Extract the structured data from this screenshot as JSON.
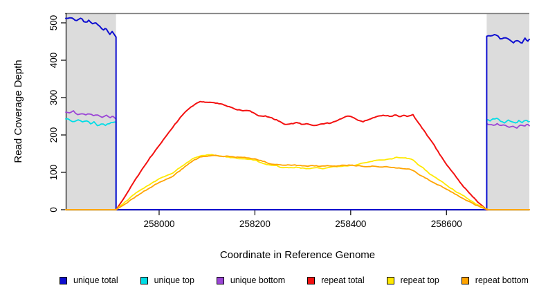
{
  "chart_data": {
    "type": "line",
    "title": "",
    "xlabel": "Coordinate in Reference Genome",
    "ylabel": "Read Coverage Depth",
    "xlim": [
      257805,
      258773
    ],
    "ylim": [
      0,
      526
    ],
    "xticks": [
      258000,
      258200,
      258400,
      258600
    ],
    "yticks": [
      0,
      100,
      200,
      300,
      400,
      500
    ],
    "grid": false,
    "legend_position": "bottom",
    "colors": {
      "shade": "#DCDCDC",
      "box": "#7F7F7F",
      "axis": "#000000",
      "blue": "#0F0FD0",
      "cyan": "#00DDE6",
      "purple": "#9B45D6",
      "red": "#F31111",
      "yellow": "#FFE900",
      "orange": "#FFA400"
    },
    "shaded_regions": [
      {
        "x0": 257805,
        "x1": 257910
      },
      {
        "x0": 258684,
        "x1": 258773
      }
    ],
    "series": [
      {
        "name": "unique total",
        "color": "#0F0FD0",
        "z": 2,
        "jitter": 3.2,
        "width": 2,
        "points": [
          [
            257805,
            512
          ],
          [
            257818,
            513
          ],
          [
            257828,
            506
          ],
          [
            257836,
            511
          ],
          [
            257846,
            500
          ],
          [
            257853,
            504
          ],
          [
            257861,
            494
          ],
          [
            257868,
            497
          ],
          [
            257876,
            488
          ],
          [
            257884,
            478
          ],
          [
            257890,
            484
          ],
          [
            257897,
            473
          ],
          [
            257902,
            477
          ],
          [
            257906,
            468
          ],
          [
            257910,
            463
          ],
          [
            257910,
            0
          ],
          [
            258684,
            0
          ],
          [
            258684,
            464
          ],
          [
            258692,
            462
          ],
          [
            258700,
            466
          ],
          [
            258708,
            460
          ],
          [
            258716,
            455
          ],
          [
            258724,
            459
          ],
          [
            258732,
            452
          ],
          [
            258740,
            448
          ],
          [
            258746,
            455
          ],
          [
            258752,
            450
          ],
          [
            258758,
            446
          ],
          [
            258764,
            456
          ],
          [
            258770,
            452
          ],
          [
            258773,
            454
          ]
        ]
      },
      {
        "name": "unique top",
        "color": "#00DDE6",
        "z": 1,
        "jitter": 2.4,
        "width": 1.8,
        "points": [
          [
            257805,
            243
          ],
          [
            257815,
            239
          ],
          [
            257823,
            235
          ],
          [
            257831,
            241
          ],
          [
            257840,
            233
          ],
          [
            257849,
            237
          ],
          [
            257857,
            229
          ],
          [
            257864,
            234
          ],
          [
            257871,
            227
          ],
          [
            257879,
            231
          ],
          [
            257888,
            225
          ],
          [
            257896,
            230
          ],
          [
            257903,
            234
          ],
          [
            257910,
            233
          ],
          [
            257910,
            0
          ],
          [
            258684,
            0
          ],
          [
            258684,
            241
          ],
          [
            258691,
            237
          ],
          [
            258697,
            244
          ],
          [
            258705,
            246
          ],
          [
            258713,
            239
          ],
          [
            258721,
            235
          ],
          [
            258729,
            240
          ],
          [
            258737,
            237
          ],
          [
            258744,
            233
          ],
          [
            258751,
            238
          ],
          [
            258758,
            235
          ],
          [
            258765,
            240
          ],
          [
            258771,
            236
          ],
          [
            258773,
            238
          ]
        ]
      },
      {
        "name": "unique bottom",
        "color": "#9B45D6",
        "z": 0,
        "jitter": 2.4,
        "width": 1.8,
        "points": [
          [
            257805,
            261
          ],
          [
            257813,
            257
          ],
          [
            257821,
            262
          ],
          [
            257830,
            255
          ],
          [
            257839,
            259
          ],
          [
            257847,
            253
          ],
          [
            257854,
            257
          ],
          [
            257863,
            251
          ],
          [
            257872,
            255
          ],
          [
            257881,
            249
          ],
          [
            257890,
            252
          ],
          [
            257898,
            247
          ],
          [
            257904,
            250
          ],
          [
            257910,
            245
          ],
          [
            257910,
            0
          ],
          [
            258684,
            0
          ],
          [
            258684,
            231
          ],
          [
            258691,
            227
          ],
          [
            258698,
            224
          ],
          [
            258706,
            228
          ],
          [
            258714,
            223
          ],
          [
            258723,
            226
          ],
          [
            258731,
            221
          ],
          [
            258739,
            225
          ],
          [
            258747,
            222
          ],
          [
            258754,
            226
          ],
          [
            258761,
            223
          ],
          [
            258767,
            227
          ],
          [
            258773,
            225
          ]
        ]
      },
      {
        "name": "repeat total",
        "color": "#F31111",
        "z": 3,
        "jitter": 1.5,
        "width": 2,
        "points": [
          [
            257805,
            0
          ],
          [
            257910,
            0
          ],
          [
            257925,
            28
          ],
          [
            257945,
            68
          ],
          [
            257965,
            108
          ],
          [
            257985,
            146
          ],
          [
            258005,
            180
          ],
          [
            258029,
            222
          ],
          [
            258048,
            252
          ],
          [
            258062,
            270
          ],
          [
            258075,
            283
          ],
          [
            258086,
            290
          ],
          [
            258096,
            287
          ],
          [
            258106,
            289
          ],
          [
            258118,
            285
          ],
          [
            258132,
            281
          ],
          [
            258146,
            276
          ],
          [
            258160,
            270
          ],
          [
            258175,
            266
          ],
          [
            258190,
            263
          ],
          [
            258200,
            256
          ],
          [
            258211,
            250
          ],
          [
            258222,
            252
          ],
          [
            258232,
            247
          ],
          [
            258242,
            241
          ],
          [
            258252,
            237
          ],
          [
            258263,
            229
          ],
          [
            258276,
            231
          ],
          [
            258287,
            232
          ],
          [
            258297,
            229
          ],
          [
            258311,
            230
          ],
          [
            258325,
            227
          ],
          [
            258340,
            229
          ],
          [
            258355,
            231
          ],
          [
            258368,
            238
          ],
          [
            258381,
            245
          ],
          [
            258394,
            250
          ],
          [
            258404,
            247
          ],
          [
            258415,
            240
          ],
          [
            258426,
            237
          ],
          [
            258438,
            241
          ],
          [
            258450,
            246
          ],
          [
            258461,
            250
          ],
          [
            258471,
            252
          ],
          [
            258481,
            250
          ],
          [
            258491,
            253
          ],
          [
            258501,
            250
          ],
          [
            258511,
            252
          ],
          [
            258521,
            250
          ],
          [
            258530,
            253
          ],
          [
            258542,
            232
          ],
          [
            258556,
            206
          ],
          [
            258571,
            178
          ],
          [
            258586,
            148
          ],
          [
            258601,
            119
          ],
          [
            258617,
            93
          ],
          [
            258632,
            68
          ],
          [
            258651,
            41
          ],
          [
            258669,
            17
          ],
          [
            258684,
            0
          ],
          [
            258773,
            0
          ]
        ]
      },
      {
        "name": "repeat top",
        "color": "#FFE900",
        "z": 4,
        "jitter": 1.2,
        "width": 1.8,
        "points": [
          [
            257805,
            0
          ],
          [
            257910,
            0
          ],
          [
            257930,
            22
          ],
          [
            257952,
            44
          ],
          [
            257976,
            64
          ],
          [
            258000,
            82
          ],
          [
            258029,
            99
          ],
          [
            258050,
            119
          ],
          [
            258070,
            136
          ],
          [
            258085,
            143
          ],
          [
            258096,
            146
          ],
          [
            258110,
            147
          ],
          [
            258126,
            144
          ],
          [
            258141,
            141
          ],
          [
            258156,
            138
          ],
          [
            258171,
            136
          ],
          [
            258186,
            134
          ],
          [
            258200,
            132
          ],
          [
            258211,
            127
          ],
          [
            258221,
            122
          ],
          [
            258231,
            119
          ],
          [
            258246,
            117
          ],
          [
            258256,
            113
          ],
          [
            258271,
            112
          ],
          [
            258286,
            114
          ],
          [
            258296,
            111
          ],
          [
            258311,
            110
          ],
          [
            258326,
            112
          ],
          [
            258341,
            110
          ],
          [
            258356,
            112
          ],
          [
            258371,
            115
          ],
          [
            258386,
            118
          ],
          [
            258396,
            117
          ],
          [
            258411,
            120
          ],
          [
            258426,
            124
          ],
          [
            258441,
            129
          ],
          [
            258456,
            132
          ],
          [
            258471,
            135
          ],
          [
            258486,
            137
          ],
          [
            258496,
            140
          ],
          [
            258511,
            138
          ],
          [
            258521,
            137
          ],
          [
            258530,
            133
          ],
          [
            258540,
            122
          ],
          [
            258552,
            110
          ],
          [
            258566,
            95
          ],
          [
            258581,
            82
          ],
          [
            258601,
            65
          ],
          [
            258621,
            48
          ],
          [
            258641,
            32
          ],
          [
            258661,
            16
          ],
          [
            258679,
            4
          ],
          [
            258688,
            0
          ],
          [
            258773,
            0
          ]
        ]
      },
      {
        "name": "repeat bottom",
        "color": "#FFA400",
        "z": 5,
        "jitter": 1.2,
        "width": 1.8,
        "points": [
          [
            257805,
            0
          ],
          [
            257910,
            0
          ],
          [
            257930,
            16
          ],
          [
            257952,
            36
          ],
          [
            257976,
            55
          ],
          [
            258000,
            73
          ],
          [
            258029,
            91
          ],
          [
            258050,
            111
          ],
          [
            258070,
            131
          ],
          [
            258085,
            140
          ],
          [
            258096,
            143
          ],
          [
            258110,
            145
          ],
          [
            258126,
            144
          ],
          [
            258141,
            143
          ],
          [
            258156,
            141
          ],
          [
            258171,
            140
          ],
          [
            258186,
            138
          ],
          [
            258200,
            136
          ],
          [
            258216,
            130
          ],
          [
            258231,
            124
          ],
          [
            258246,
            121
          ],
          [
            258261,
            119
          ],
          [
            258276,
            120
          ],
          [
            258291,
            118
          ],
          [
            258306,
            117
          ],
          [
            258321,
            118
          ],
          [
            258336,
            116
          ],
          [
            258351,
            117
          ],
          [
            258366,
            117
          ],
          [
            258381,
            119
          ],
          [
            258396,
            120
          ],
          [
            258411,
            118
          ],
          [
            258426,
            116
          ],
          [
            258441,
            117
          ],
          [
            258456,
            116
          ],
          [
            258471,
            115
          ],
          [
            258486,
            114
          ],
          [
            258501,
            112
          ],
          [
            258516,
            110
          ],
          [
            258530,
            106
          ],
          [
            258540,
            97
          ],
          [
            258552,
            88
          ],
          [
            258566,
            78
          ],
          [
            258581,
            68
          ],
          [
            258601,
            54
          ],
          [
            258621,
            40
          ],
          [
            258641,
            26
          ],
          [
            258661,
            13
          ],
          [
            258679,
            3
          ],
          [
            258688,
            0
          ],
          [
            258773,
            0
          ]
        ]
      }
    ]
  }
}
